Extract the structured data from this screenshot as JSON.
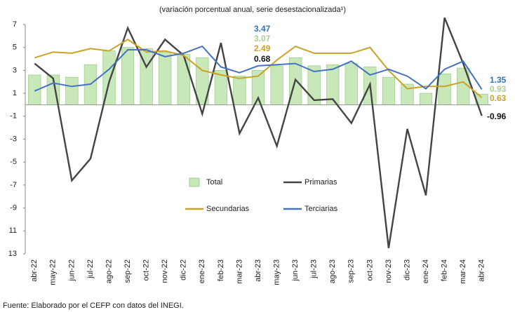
{
  "chart_data": {
    "type": "bar-line",
    "title": "(variación porcentual anual, serie desestacionalizada¹)",
    "source": "Fuente: Elaborado por el CEFP con datos del INEGI.",
    "categories": [
      "abr-22",
      "may-22",
      "jun-22",
      "jul-22",
      "ago-22",
      "sep-22",
      "oct-22",
      "nov-22",
      "dic-22",
      "ene-23",
      "feb-23",
      "mar-23",
      "abr-23",
      "may-23",
      "jun-23",
      "jul-23",
      "ago-23",
      "sep-23",
      "oct-23",
      "nov-23",
      "dic-23",
      "ene-24",
      "feb-24",
      "mar-24",
      "abr-24"
    ],
    "series": [
      {
        "name": "Total",
        "kind": "bar",
        "color": "#c9e8b9",
        "values": [
          2.6,
          2.6,
          2.4,
          3.5,
          4.7,
          5.0,
          4.9,
          4.6,
          4.4,
          4.1,
          3.0,
          2.5,
          3.0,
          3.4,
          4.1,
          3.4,
          3.5,
          3.6,
          3.3,
          2.4,
          1.8,
          1.0,
          2.7,
          3.2,
          0.93
        ]
      },
      {
        "name": "Primarias",
        "kind": "line",
        "color": "#444444",
        "values": [
          3.6,
          2.3,
          -6.6,
          -4.7,
          2.0,
          6.7,
          3.3,
          5.7,
          4.3,
          -0.8,
          5.4,
          -2.5,
          0.6,
          -3.6,
          2.2,
          0.4,
          0.5,
          -1.6,
          1.8,
          -12.5,
          -2.1,
          -7.9,
          7.6,
          3.6,
          -0.96
        ]
      },
      {
        "name": "Secundarias",
        "kind": "line",
        "color": "#c9a227",
        "values": [
          4.1,
          4.6,
          4.5,
          4.9,
          4.7,
          5.7,
          4.6,
          4.7,
          4.3,
          3.0,
          2.6,
          2.3,
          2.5,
          3.9,
          5.1,
          4.5,
          4.5,
          4.5,
          5.0,
          3.0,
          1.4,
          1.6,
          1.6,
          2.0,
          0.63
        ]
      },
      {
        "name": "Terciarias",
        "kind": "line",
        "color": "#4472c4",
        "values": [
          1.2,
          1.9,
          1.6,
          1.8,
          3.1,
          4.8,
          4.8,
          4.2,
          4.5,
          5.1,
          3.3,
          2.8,
          3.4,
          3.5,
          3.6,
          2.9,
          3.1,
          3.8,
          2.6,
          3.1,
          2.5,
          1.4,
          3.1,
          3.8,
          1.35
        ]
      }
    ],
    "annotations": [
      {
        "text": "3.47",
        "color": "#2e74b5"
      },
      {
        "text": "3.07",
        "color": "#a9d18e"
      },
      {
        "text": "2.49",
        "color": "#c9a227"
      },
      {
        "text": "0.68",
        "color": "#111111"
      },
      {
        "text": "1.35",
        "color": "#2e74b5"
      },
      {
        "text": "0.93",
        "color": "#a9d18e"
      },
      {
        "text": "0.63",
        "color": "#c9a227"
      },
      {
        "text": "-0.96",
        "color": "#111111"
      }
    ],
    "ylim": [
      -13,
      7
    ],
    "yticks": [
      7,
      5,
      3,
      1,
      -1,
      -3,
      -5,
      -7,
      -9,
      {
        "value": -11,
        "label": "11"
      },
      {
        "value": -13,
        "label": "13"
      }
    ]
  }
}
